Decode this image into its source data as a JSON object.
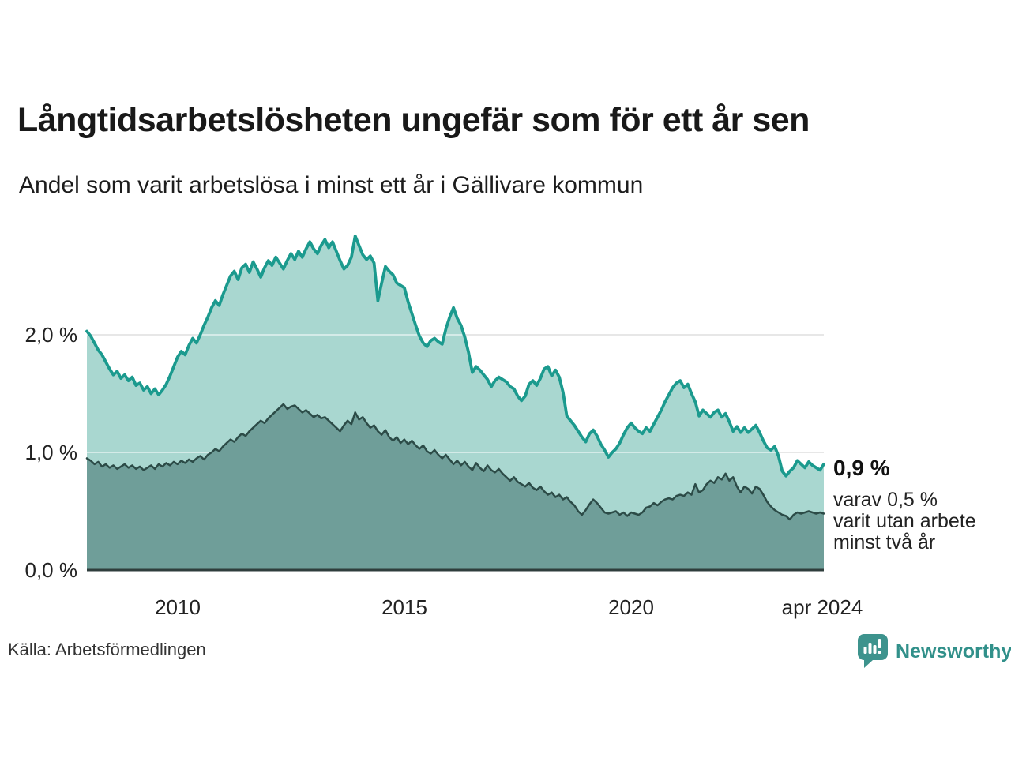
{
  "title": "Långtidsarbetslösheten ungefär som för ett år sen",
  "subtitle": "Andel som varit arbetslösa i minst ett år i Gällivare kommun",
  "source": "Källa: Arbetsförmedlingen",
  "branding": {
    "name": "Newsworthy"
  },
  "annotations": {
    "end_value_label": "0,9 %",
    "end_sub_line1": "varav 0,5 %",
    "end_sub_line2": "varit utan arbete",
    "end_sub_line3": "minst två år"
  },
  "colors": {
    "accent_teal": "#1b9a8e",
    "light_fill": "#a9d7d0",
    "dark_fill": "#6f9e99",
    "dark_line": "#2c4b47",
    "baseline": "#2f3e3c",
    "grid": "#cfcfcf",
    "brand_teal": "#3d938d"
  },
  "chart_data": {
    "type": "area",
    "title": "Långtidsarbetslösheten ungefär som för ett år sen",
    "subtitle": "Andel som varit arbetslösa i minst ett år i Gällivare kommun",
    "x_start": "2008-01",
    "x_end": "2024-04",
    "freq": "monthly",
    "grid": "horizontal",
    "legend_position": "none",
    "ylim": [
      0,
      2.95
    ],
    "y_ticks": [
      {
        "value": 0,
        "label": "0,0 %"
      },
      {
        "value": 1,
        "label": "1,0 %"
      },
      {
        "value": 2,
        "label": "2,0 %"
      }
    ],
    "x_ticks": [
      {
        "year": 2010.0,
        "label": "2010"
      },
      {
        "year": 2015.0,
        "label": "2015"
      },
      {
        "year": 2020.0,
        "label": "2020"
      },
      {
        "year": 2024.29,
        "label": "apr 2024"
      }
    ],
    "series": [
      {
        "name": "Andel arbetslösa minst ett år",
        "end_value": 0.9,
        "values": [
          2.03,
          1.99,
          1.93,
          1.87,
          1.83,
          1.77,
          1.71,
          1.66,
          1.69,
          1.63,
          1.66,
          1.61,
          1.64,
          1.57,
          1.59,
          1.53,
          1.56,
          1.5,
          1.54,
          1.49,
          1.53,
          1.58,
          1.65,
          1.73,
          1.81,
          1.86,
          1.83,
          1.91,
          1.97,
          1.93,
          2.0,
          2.08,
          2.15,
          2.23,
          2.29,
          2.25,
          2.34,
          2.42,
          2.5,
          2.54,
          2.47,
          2.57,
          2.6,
          2.53,
          2.62,
          2.56,
          2.49,
          2.57,
          2.63,
          2.59,
          2.66,
          2.61,
          2.56,
          2.63,
          2.69,
          2.64,
          2.71,
          2.66,
          2.73,
          2.79,
          2.73,
          2.69,
          2.76,
          2.81,
          2.74,
          2.79,
          2.71,
          2.63,
          2.56,
          2.59,
          2.66,
          2.84,
          2.76,
          2.68,
          2.64,
          2.67,
          2.61,
          2.29,
          2.44,
          2.58,
          2.54,
          2.51,
          2.44,
          2.42,
          2.4,
          2.28,
          2.18,
          2.08,
          1.99,
          1.93,
          1.9,
          1.95,
          1.97,
          1.94,
          1.92,
          2.05,
          2.15,
          2.23,
          2.14,
          2.08,
          1.98,
          1.85,
          1.68,
          1.73,
          1.7,
          1.66,
          1.62,
          1.56,
          1.61,
          1.64,
          1.62,
          1.6,
          1.56,
          1.54,
          1.48,
          1.44,
          1.48,
          1.58,
          1.61,
          1.57,
          1.63,
          1.71,
          1.73,
          1.65,
          1.7,
          1.64,
          1.51,
          1.31,
          1.27,
          1.23,
          1.18,
          1.13,
          1.09,
          1.16,
          1.19,
          1.14,
          1.07,
          1.02,
          0.96,
          1.0,
          1.03,
          1.08,
          1.15,
          1.21,
          1.25,
          1.21,
          1.18,
          1.16,
          1.21,
          1.18,
          1.24,
          1.3,
          1.36,
          1.43,
          1.49,
          1.55,
          1.59,
          1.61,
          1.55,
          1.58,
          1.5,
          1.43,
          1.31,
          1.36,
          1.33,
          1.3,
          1.34,
          1.36,
          1.3,
          1.33,
          1.26,
          1.18,
          1.22,
          1.17,
          1.21,
          1.17,
          1.2,
          1.23,
          1.17,
          1.1,
          1.04,
          1.02,
          1.05,
          0.97,
          0.84,
          0.8,
          0.84,
          0.87,
          0.93,
          0.9,
          0.87,
          0.92,
          0.89,
          0.87,
          0.85,
          0.9
        ]
      },
      {
        "name": "Varav arbetslösa minst två år",
        "end_value": 0.5,
        "values": [
          0.95,
          0.93,
          0.9,
          0.92,
          0.88,
          0.9,
          0.87,
          0.89,
          0.86,
          0.88,
          0.9,
          0.87,
          0.89,
          0.86,
          0.88,
          0.85,
          0.87,
          0.89,
          0.86,
          0.9,
          0.88,
          0.91,
          0.89,
          0.92,
          0.9,
          0.93,
          0.91,
          0.94,
          0.92,
          0.95,
          0.97,
          0.94,
          0.98,
          1.0,
          1.03,
          1.01,
          1.05,
          1.08,
          1.11,
          1.09,
          1.13,
          1.16,
          1.14,
          1.18,
          1.21,
          1.24,
          1.27,
          1.25,
          1.29,
          1.32,
          1.35,
          1.38,
          1.41,
          1.37,
          1.39,
          1.4,
          1.37,
          1.34,
          1.36,
          1.33,
          1.3,
          1.32,
          1.29,
          1.3,
          1.27,
          1.24,
          1.21,
          1.18,
          1.23,
          1.27,
          1.24,
          1.34,
          1.28,
          1.3,
          1.25,
          1.21,
          1.23,
          1.18,
          1.15,
          1.19,
          1.13,
          1.1,
          1.13,
          1.08,
          1.11,
          1.07,
          1.1,
          1.06,
          1.03,
          1.06,
          1.01,
          0.99,
          1.02,
          0.98,
          0.95,
          0.98,
          0.94,
          0.9,
          0.93,
          0.89,
          0.92,
          0.88,
          0.85,
          0.91,
          0.87,
          0.84,
          0.89,
          0.85,
          0.83,
          0.86,
          0.82,
          0.79,
          0.76,
          0.79,
          0.75,
          0.73,
          0.71,
          0.74,
          0.7,
          0.68,
          0.71,
          0.67,
          0.64,
          0.66,
          0.62,
          0.64,
          0.6,
          0.62,
          0.58,
          0.55,
          0.5,
          0.47,
          0.51,
          0.56,
          0.6,
          0.57,
          0.53,
          0.49,
          0.48,
          0.49,
          0.5,
          0.47,
          0.49,
          0.46,
          0.49,
          0.48,
          0.47,
          0.49,
          0.53,
          0.54,
          0.57,
          0.55,
          0.58,
          0.6,
          0.61,
          0.6,
          0.63,
          0.64,
          0.63,
          0.66,
          0.64,
          0.73,
          0.66,
          0.68,
          0.73,
          0.76,
          0.74,
          0.79,
          0.77,
          0.82,
          0.76,
          0.79,
          0.71,
          0.66,
          0.71,
          0.69,
          0.65,
          0.71,
          0.69,
          0.64,
          0.58,
          0.54,
          0.51,
          0.49,
          0.47,
          0.46,
          0.43,
          0.47,
          0.49,
          0.48,
          0.49,
          0.5,
          0.49,
          0.48,
          0.49,
          0.48
        ]
      }
    ]
  }
}
